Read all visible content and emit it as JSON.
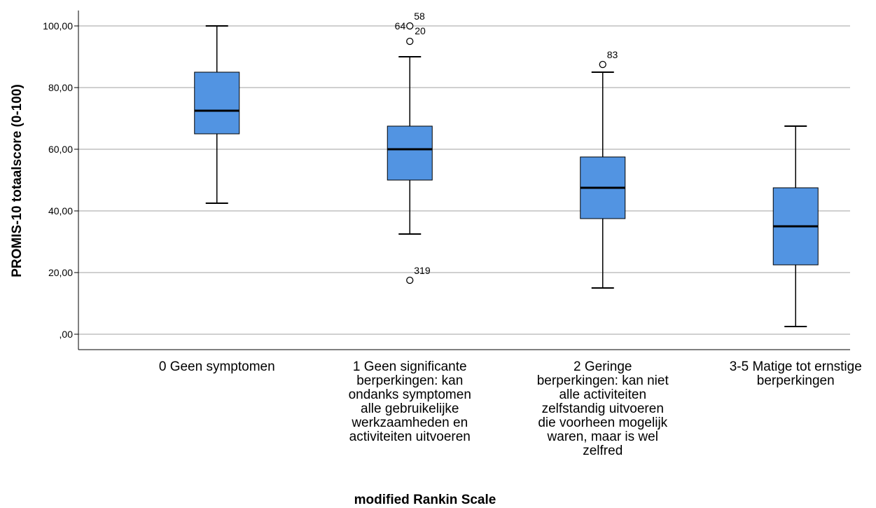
{
  "chart_data": {
    "type": "boxplot",
    "title": "",
    "xlabel": "modified Rankin Scale",
    "ylabel": "PROMIS-10 totaalscore (0-100)",
    "ylim": [
      -5,
      105
    ],
    "yticks": [
      0,
      20,
      40,
      60,
      80,
      100
    ],
    "ytick_labels": [
      ",00",
      "20,00",
      "40,00",
      "60,00",
      "80,00",
      "100,00"
    ],
    "grid": true,
    "box_color": "#5294e2",
    "categories": [
      "0 Geen symptomen",
      "1 Geen significante\nberperkingen: kan\nondanks symptomen\nalle gebruikelijke\nwerkzaamheden en\nactiviteiten uitvoeren",
      "2 Geringe\nberperkingen: kan niet\nalle activiteiten\nzelfstandig uitvoeren\ndie voorheen mogelijk\nwaren, maar is wel\nzelfred",
      "3-5 Matige tot ernstige\nberperkingen"
    ],
    "boxes": [
      {
        "whisker_low": 42.5,
        "q1": 65.0,
        "median": 72.5,
        "q3": 85.0,
        "whisker_high": 100.0,
        "outliers": []
      },
      {
        "whisker_low": 32.5,
        "q1": 50.0,
        "median": 60.0,
        "q3": 67.5,
        "whisker_high": 90.0,
        "outliers": [
          {
            "value": 100.0,
            "labels": [
              "58",
              "64",
              "20"
            ]
          },
          {
            "value": 95.0,
            "labels": []
          },
          {
            "value": 17.5,
            "labels": [
              "319"
            ]
          }
        ]
      },
      {
        "whisker_low": 15.0,
        "q1": 37.5,
        "median": 47.5,
        "q3": 57.5,
        "whisker_high": 85.0,
        "outliers": [
          {
            "value": 87.5,
            "labels": [
              "83"
            ]
          }
        ]
      },
      {
        "whisker_low": 2.5,
        "q1": 22.5,
        "median": 35.0,
        "q3": 47.5,
        "whisker_high": 67.5,
        "outliers": []
      }
    ]
  }
}
